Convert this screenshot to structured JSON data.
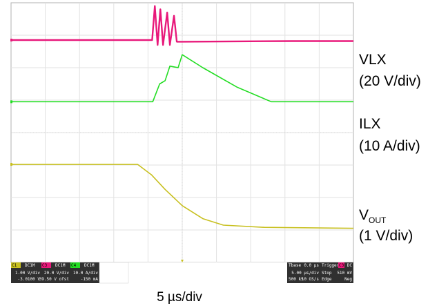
{
  "chart_data": {
    "type": "line",
    "title": "",
    "time_per_div_label": "5 µs/div",
    "time_per_div_us": 5,
    "divisions": {
      "x": 10,
      "y": 8
    },
    "x_unit": "µs",
    "xlim": [
      -25,
      25
    ],
    "grid": true,
    "series": [
      {
        "name": "VLX",
        "scale_label": "(20 V/div)",
        "color": "#e8187a",
        "points_us_div": [
          [
            -25,
            2.85
          ],
          [
            -4.4,
            2.85
          ],
          [
            -4.0,
            3.9
          ],
          [
            -3.6,
            2.7
          ],
          [
            -3.2,
            3.8
          ],
          [
            -2.8,
            2.7
          ],
          [
            -2.2,
            3.7
          ],
          [
            -1.8,
            2.7
          ],
          [
            -1.2,
            3.6
          ],
          [
            -0.8,
            2.8
          ],
          [
            0,
            2.8
          ],
          [
            16,
            2.82
          ],
          [
            25,
            2.82
          ]
        ]
      },
      {
        "name": "ILX",
        "scale_label": "(10 A/div)",
        "color": "#22dd22",
        "points_us_div": [
          [
            -25,
            0.95
          ],
          [
            -4.3,
            0.95
          ],
          [
            -3.3,
            1.5
          ],
          [
            -2.5,
            1.6
          ],
          [
            -1.8,
            2.05
          ],
          [
            -0.6,
            2.0
          ],
          [
            0,
            2.4
          ],
          [
            3,
            2.0
          ],
          [
            8,
            1.4
          ],
          [
            13,
            0.95
          ],
          [
            25,
            0.95
          ]
        ]
      },
      {
        "name": "VOUT",
        "name_main": "V",
        "name_sub": "OUT",
        "scale_label": "(1 V/div)",
        "color": "#c8c020",
        "points_us_div": [
          [
            -25,
            -0.98
          ],
          [
            -6.5,
            -0.98
          ],
          [
            -4.5,
            -1.3
          ],
          [
            -2.5,
            -1.75
          ],
          [
            0,
            -2.25
          ],
          [
            3,
            -2.65
          ],
          [
            6,
            -2.85
          ],
          [
            12,
            -2.92
          ],
          [
            25,
            -2.95
          ]
        ]
      }
    ]
  },
  "readouts": {
    "c1": {
      "tag": "C1",
      "mode": "DC1M",
      "scale": "1.00 V/div",
      "offset": "-3.0100 V"
    },
    "c3": {
      "tag": "C3",
      "mode": "DC1M",
      "scale": "20.0 V/div",
      "offset": "39.50 V ofst"
    },
    "c4": {
      "tag": "C4",
      "mode": "DC1M",
      "scale": "10.0 A/div",
      "offset": "-150 mA"
    },
    "tbase": {
      "label": "Tbase",
      "delay": "0.0 µs",
      "rate": "5.00 µs/div",
      "samples": "500 kS",
      "srate": "10 GS/s"
    },
    "trigger": {
      "label": "Trigger",
      "tag": "C3",
      "coupling": "DC",
      "mode": "Stop",
      "level": "510 mV",
      "type": "Edge",
      "slope": "Neg"
    }
  }
}
